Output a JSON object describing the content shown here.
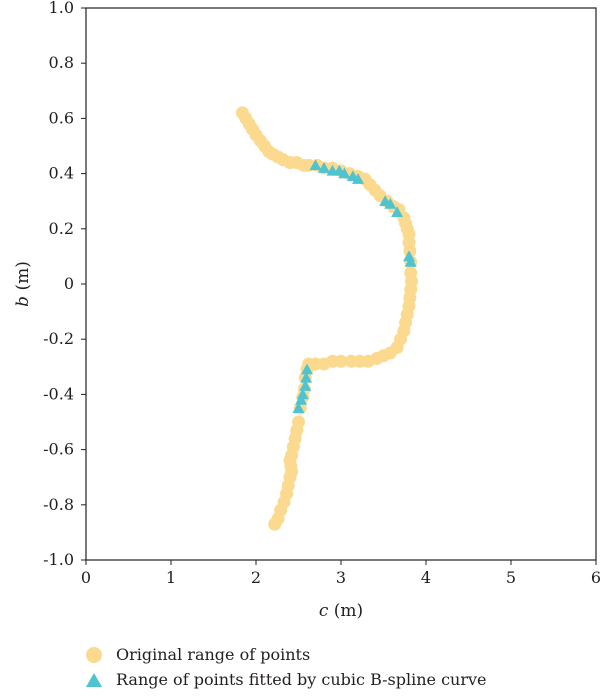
{
  "chart_data": {
    "type": "scatter",
    "xlabel_var": "c",
    "xlabel_unit": "(m)",
    "ylabel_var": "b",
    "ylabel_unit": "(m)",
    "xlim": [
      0,
      6
    ],
    "ylim": [
      -1.0,
      1.0
    ],
    "x_ticks": [
      "0",
      "1",
      "2",
      "3",
      "4",
      "5",
      "6"
    ],
    "y_ticks": [
      "1.0",
      "0.8",
      "0.6",
      "0.4",
      "0.2",
      "0",
      "-0.2",
      "-0.4",
      "-0.6",
      "-0.8",
      "-1.0"
    ],
    "grid": false,
    "legend_position": "bottom",
    "series": [
      {
        "name": "Original range of points",
        "marker": "circle",
        "color": "#fbd98f",
        "points": [
          [
            1.84,
            0.62
          ],
          [
            1.88,
            0.6
          ],
          [
            1.92,
            0.58
          ],
          [
            1.96,
            0.56
          ],
          [
            2.0,
            0.54
          ],
          [
            2.05,
            0.52
          ],
          [
            2.1,
            0.5
          ],
          [
            2.15,
            0.48
          ],
          [
            2.2,
            0.47
          ],
          [
            2.26,
            0.46
          ],
          [
            2.32,
            0.45
          ],
          [
            2.4,
            0.44
          ],
          [
            2.48,
            0.44
          ],
          [
            2.56,
            0.43
          ],
          [
            2.62,
            0.43
          ],
          [
            2.72,
            0.43
          ],
          [
            2.8,
            0.42
          ],
          [
            2.9,
            0.42
          ],
          [
            3.0,
            0.41
          ],
          [
            3.1,
            0.4
          ],
          [
            3.2,
            0.39
          ],
          [
            3.28,
            0.38
          ],
          [
            3.34,
            0.36
          ],
          [
            3.4,
            0.34
          ],
          [
            3.46,
            0.32
          ],
          [
            3.54,
            0.3
          ],
          [
            3.62,
            0.28
          ],
          [
            3.68,
            0.27
          ],
          [
            3.74,
            0.24
          ],
          [
            3.76,
            0.22
          ],
          [
            3.78,
            0.2
          ],
          [
            3.8,
            0.18
          ],
          [
            3.8,
            0.15
          ],
          [
            3.81,
            0.12
          ],
          [
            3.82,
            0.08
          ],
          [
            3.82,
            0.04
          ],
          [
            3.83,
            0.01
          ],
          [
            3.82,
            -0.02
          ],
          [
            3.81,
            -0.05
          ],
          [
            3.8,
            -0.08
          ],
          [
            3.78,
            -0.11
          ],
          [
            3.76,
            -0.14
          ],
          [
            3.74,
            -0.17
          ],
          [
            3.7,
            -0.2
          ],
          [
            3.66,
            -0.23
          ],
          [
            3.58,
            -0.25
          ],
          [
            3.5,
            -0.26
          ],
          [
            3.42,
            -0.27
          ],
          [
            3.32,
            -0.28
          ],
          [
            3.22,
            -0.28
          ],
          [
            3.12,
            -0.28
          ],
          [
            3.0,
            -0.28
          ],
          [
            2.9,
            -0.28
          ],
          [
            2.8,
            -0.29
          ],
          [
            2.7,
            -0.29
          ],
          [
            2.62,
            -0.29
          ],
          [
            2.6,
            -0.31
          ],
          [
            2.58,
            -0.34
          ],
          [
            2.57,
            -0.38
          ],
          [
            2.55,
            -0.41
          ],
          [
            2.52,
            -0.45
          ],
          [
            2.5,
            -0.5
          ],
          [
            2.48,
            -0.53
          ],
          [
            2.46,
            -0.56
          ],
          [
            2.44,
            -0.59
          ],
          [
            2.42,
            -0.62
          ],
          [
            2.4,
            -0.64
          ],
          [
            2.41,
            -0.66
          ],
          [
            2.42,
            -0.68
          ],
          [
            2.4,
            -0.7
          ],
          [
            2.38,
            -0.73
          ],
          [
            2.36,
            -0.76
          ],
          [
            2.33,
            -0.79
          ],
          [
            2.29,
            -0.82
          ],
          [
            2.26,
            -0.85
          ],
          [
            2.22,
            -0.87
          ]
        ]
      },
      {
        "name": "Range of points fitted by cubic B-spline curve",
        "marker": "triangle",
        "color": "#4fc3cf",
        "points": [
          [
            2.7,
            0.43
          ],
          [
            2.8,
            0.42
          ],
          [
            2.9,
            0.41
          ],
          [
            2.98,
            0.41
          ],
          [
            3.04,
            0.4
          ],
          [
            3.14,
            0.39
          ],
          [
            3.2,
            0.38
          ],
          [
            3.52,
            0.3
          ],
          [
            3.58,
            0.29
          ],
          [
            3.66,
            0.26
          ],
          [
            3.8,
            0.1
          ],
          [
            3.82,
            0.08
          ],
          [
            2.6,
            -0.31
          ],
          [
            2.59,
            -0.34
          ],
          [
            2.58,
            -0.37
          ],
          [
            2.55,
            -0.4
          ],
          [
            2.53,
            -0.42
          ],
          [
            2.5,
            -0.45
          ]
        ]
      }
    ]
  },
  "legend": {
    "items": [
      {
        "label": "Original range of points",
        "color": "#fbd98f"
      },
      {
        "label": "Range of points fitted by cubic B-spline curve",
        "color": "#4fc3cf"
      }
    ]
  }
}
